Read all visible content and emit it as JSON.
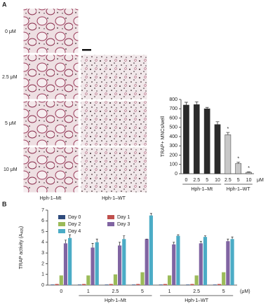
{
  "figure": {
    "panel_labels": [
      "A",
      "B"
    ],
    "row_labels": [
      "0 μM",
      "2.5 μM",
      "5 μM",
      "10 μM"
    ],
    "column_labels": [
      "Hph-1–Mt",
      "Hph-1–WT"
    ]
  },
  "chart_data": [
    {
      "type": "bar",
      "y_label": "TRAP+ MNCs/well",
      "unit": "μM",
      "categories": [
        "0",
        "2.5",
        "5",
        "10",
        "2.5",
        "5",
        "10"
      ],
      "values": [
        740,
        745,
        700,
        530,
        420,
        110,
        15
      ],
      "errors": [
        30,
        30,
        15,
        30,
        25,
        15,
        5
      ],
      "colors": [
        "#2b2b2b",
        "#2b2b2b",
        "#2b2b2b",
        "#2b2b2b",
        "#c8c8c8",
        "#c8c8c8",
        "#c8c8c8"
      ],
      "markers": [
        null,
        null,
        null,
        null,
        "*",
        "*",
        "*"
      ],
      "groups": [
        {
          "label": "Hph-1–Mt",
          "first": 0,
          "last": 3
        },
        {
          "label": "Hph-1–WT",
          "first": 4,
          "last": 6
        }
      ],
      "ylim": [
        0,
        800
      ],
      "yticks": [
        0,
        100,
        200,
        300,
        400,
        500,
        600,
        700,
        800
      ]
    },
    {
      "type": "grouped_bar",
      "y_label": {
        "text": "TRAP activity (A",
        "sub": "405",
        "close": ")"
      },
      "unit": "(μM)",
      "categories": [
        "0",
        "1",
        "2.5",
        "5",
        "1",
        "2.5",
        "5"
      ],
      "series": [
        {
          "name": "Day 0",
          "color": "#2f4b7c",
          "values": [
            0.05,
            0.05,
            0.05,
            0.05,
            0.05,
            0.05,
            0.05
          ]
        },
        {
          "name": "Day 1",
          "color": "#c0504d",
          "values": [
            0.1,
            0.1,
            0.1,
            0.1,
            0.1,
            0.1,
            0.1
          ]
        },
        {
          "name": "Day 2",
          "color": "#9bbb59",
          "values": [
            0.9,
            0.9,
            1.0,
            1.2,
            0.9,
            0.9,
            1.2
          ]
        },
        {
          "name": "Day 3",
          "color": "#8064a2",
          "values": [
            3.9,
            3.5,
            3.7,
            4.3,
            3.8,
            3.9,
            4.1
          ],
          "errors": [
            0.3,
            0.4,
            0.3,
            0.0,
            0.2,
            0.2,
            0.2
          ]
        },
        {
          "name": "Day 4",
          "color": "#4bacc6",
          "values": [
            4.4,
            4.0,
            4.3,
            6.5,
            4.6,
            4.5,
            4.3
          ],
          "errors": [
            0.3,
            0.3,
            0.3,
            0.2,
            0.1,
            0.1,
            0.2
          ]
        }
      ],
      "groups": [
        {
          "label": "Hph-1–Mt",
          "first": 1,
          "last": 3
        },
        {
          "label": "Hph-1–WT",
          "first": 4,
          "last": 6
        }
      ],
      "legend": "upper left",
      "ylim": [
        0,
        7
      ],
      "yticks": [
        0,
        1,
        2,
        3,
        4,
        5,
        6,
        7
      ]
    }
  ]
}
